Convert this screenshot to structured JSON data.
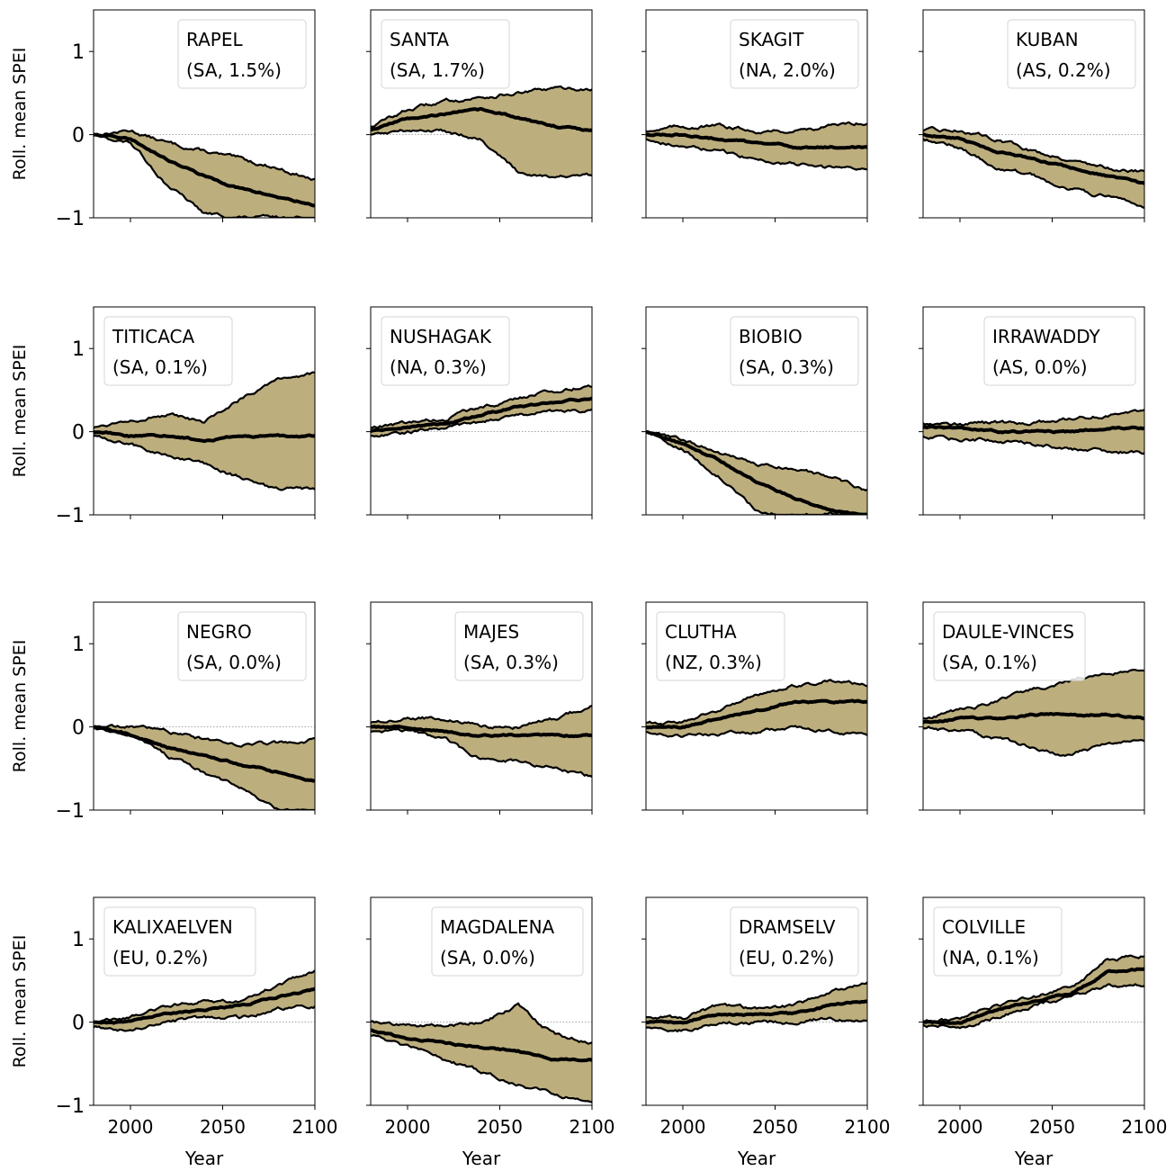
{
  "figure": {
    "ylabel": "Roll. mean SPEI",
    "xlabel": "Year",
    "xticks": [
      2000,
      2050,
      2100
    ],
    "yticks": [
      1,
      0,
      -1
    ],
    "xlim": [
      1980,
      2100
    ],
    "ylim": [
      -1,
      1.5
    ],
    "colors": {
      "shared": "#BDAE7E",
      "lower_only": "#FFE79A",
      "upper_only": "#9B9BD0",
      "line": "#000000"
    }
  },
  "chart_data": [
    {
      "type": "area",
      "title": "RAPEL",
      "subtitle": "(SA, 1.5%)",
      "legend": "right",
      "x": [
        1980,
        2000,
        2020,
        2040,
        2060,
        2080,
        2100
      ],
      "upper": [
        0.0,
        0.05,
        -0.1,
        -0.2,
        -0.3,
        -0.4,
        -0.55
      ],
      "median": [
        0.0,
        -0.05,
        -0.3,
        -0.5,
        -0.65,
        -0.75,
        -0.85
      ],
      "lower": [
        0.0,
        -0.1,
        -0.6,
        -0.95,
        -1.0,
        -1.0,
        -1.0
      ]
    },
    {
      "type": "area",
      "title": "SANTA",
      "subtitle": "(SA, 1.7%)",
      "legend": "left",
      "x": [
        1980,
        2000,
        2020,
        2040,
        2060,
        2080,
        2100
      ],
      "upper": [
        0.1,
        0.3,
        0.4,
        0.45,
        0.5,
        0.55,
        0.55
      ],
      "median": [
        0.05,
        0.2,
        0.25,
        0.3,
        0.2,
        0.1,
        0.05
      ],
      "lower": [
        0.0,
        0.05,
        0.05,
        -0.05,
        -0.45,
        -0.5,
        -0.5
      ]
    },
    {
      "type": "area",
      "title": "SKAGIT",
      "subtitle": "(NA, 2.0%)",
      "legend": "right",
      "x": [
        1980,
        2000,
        2020,
        2040,
        2060,
        2080,
        2100
      ],
      "upper": [
        0.05,
        0.1,
        0.1,
        0.05,
        0.05,
        0.1,
        0.15
      ],
      "median": [
        0.0,
        0.0,
        -0.05,
        -0.1,
        -0.15,
        -0.15,
        -0.15
      ],
      "lower": [
        -0.05,
        -0.15,
        -0.2,
        -0.3,
        -0.35,
        -0.4,
        -0.4
      ]
    },
    {
      "type": "area",
      "title": "KUBAN",
      "subtitle": "(AS, 0.2%)",
      "legend": "right",
      "x": [
        1980,
        2000,
        2020,
        2040,
        2060,
        2080,
        2100
      ],
      "upper": [
        0.05,
        0.05,
        -0.05,
        -0.2,
        -0.3,
        -0.4,
        -0.45
      ],
      "median": [
        0.0,
        -0.05,
        -0.2,
        -0.3,
        -0.4,
        -0.5,
        -0.6
      ],
      "lower": [
        -0.05,
        -0.15,
        -0.4,
        -0.5,
        -0.65,
        -0.75,
        -0.85
      ]
    },
    {
      "type": "area",
      "title": "TITICACA",
      "subtitle": "(SA, 0.1%)",
      "legend": "left",
      "x": [
        1980,
        2000,
        2020,
        2040,
        2060,
        2080,
        2100
      ],
      "upper": [
        0.05,
        0.15,
        0.2,
        0.1,
        0.4,
        0.65,
        0.7
      ],
      "median": [
        0.0,
        -0.05,
        -0.05,
        -0.1,
        -0.05,
        -0.05,
        -0.05
      ],
      "lower": [
        -0.05,
        -0.15,
        -0.3,
        -0.4,
        -0.55,
        -0.7,
        -0.7
      ]
    },
    {
      "type": "area",
      "title": "NUSHAGAK",
      "subtitle": "(NA, 0.3%)",
      "legend": "left",
      "x": [
        1980,
        2000,
        2020,
        2040,
        2060,
        2080,
        2100
      ],
      "upper": [
        0.05,
        0.1,
        0.15,
        0.3,
        0.4,
        0.5,
        0.55
      ],
      "median": [
        0.0,
        0.05,
        0.1,
        0.2,
        0.3,
        0.35,
        0.4
      ],
      "lower": [
        -0.05,
        0.0,
        0.05,
        0.1,
        0.2,
        0.25,
        0.25
      ]
    },
    {
      "type": "area",
      "title": "BIOBIO",
      "subtitle": "(SA, 0.3%)",
      "legend": "right",
      "x": [
        1980,
        2000,
        2020,
        2040,
        2060,
        2080,
        2100
      ],
      "upper": [
        0.0,
        -0.1,
        -0.25,
        -0.4,
        -0.45,
        -0.55,
        -0.7
      ],
      "median": [
        0.0,
        -0.15,
        -0.35,
        -0.6,
        -0.8,
        -0.95,
        -1.0
      ],
      "lower": [
        0.0,
        -0.2,
        -0.55,
        -0.95,
        -1.0,
        -1.0,
        -1.0
      ]
    },
    {
      "type": "area",
      "title": "IRRAWADDY",
      "subtitle": "(AS, 0.0%)",
      "legend": "right",
      "x": [
        1980,
        2000,
        2020,
        2040,
        2060,
        2080,
        2100
      ],
      "upper": [
        0.1,
        0.1,
        0.1,
        0.1,
        0.15,
        0.2,
        0.25
      ],
      "median": [
        0.05,
        0.05,
        0.0,
        0.0,
        0.0,
        0.05,
        0.05
      ],
      "lower": [
        -0.05,
        -0.1,
        -0.1,
        -0.15,
        -0.2,
        -0.25,
        -0.25
      ]
    },
    {
      "type": "area",
      "title": "NEGRO",
      "subtitle": "(SA, 0.0%)",
      "legend": "right",
      "x": [
        1980,
        2000,
        2020,
        2040,
        2060,
        2080,
        2100
      ],
      "upper": [
        0.0,
        0.0,
        -0.05,
        -0.15,
        -0.2,
        -0.2,
        -0.15
      ],
      "median": [
        0.0,
        -0.1,
        -0.25,
        -0.35,
        -0.45,
        -0.55,
        -0.65
      ],
      "lower": [
        0.0,
        -0.1,
        -0.35,
        -0.55,
        -0.75,
        -1.0,
        -1.0
      ]
    },
    {
      "type": "area",
      "title": "MAJES",
      "subtitle": "(SA, 0.3%)",
      "legend": "right",
      "x": [
        1980,
        2000,
        2020,
        2040,
        2060,
        2080,
        2100
      ],
      "upper": [
        0.05,
        0.1,
        0.1,
        0.0,
        0.0,
        0.1,
        0.25
      ],
      "median": [
        0.0,
        0.0,
        -0.05,
        -0.1,
        -0.1,
        -0.1,
        -0.1
      ],
      "lower": [
        -0.05,
        -0.05,
        -0.15,
        -0.4,
        -0.4,
        -0.5,
        -0.6
      ]
    },
    {
      "type": "area",
      "title": "CLUTHA",
      "subtitle": "(NZ, 0.3%)",
      "legend": "left",
      "x": [
        1980,
        2000,
        2020,
        2040,
        2060,
        2080,
        2100
      ],
      "upper": [
        0.05,
        0.05,
        0.2,
        0.4,
        0.5,
        0.55,
        0.5
      ],
      "median": [
        0.0,
        0.0,
        0.1,
        0.2,
        0.3,
        0.3,
        0.3
      ],
      "lower": [
        -0.05,
        -0.1,
        -0.1,
        -0.05,
        0.0,
        -0.05,
        -0.1
      ]
    },
    {
      "type": "area",
      "title": "DAULE-VINCES",
      "subtitle": "(SA, 0.1%)",
      "legend": "left",
      "x": [
        1980,
        2000,
        2020,
        2040,
        2060,
        2080,
        2100
      ],
      "upper": [
        0.1,
        0.2,
        0.3,
        0.45,
        0.55,
        0.65,
        0.7
      ],
      "median": [
        0.05,
        0.1,
        0.1,
        0.15,
        0.15,
        0.15,
        0.1
      ],
      "lower": [
        0.0,
        -0.05,
        -0.15,
        -0.25,
        -0.35,
        -0.2,
        -0.15
      ]
    },
    {
      "type": "area",
      "title": "KALIXAELVEN",
      "subtitle": "(EU, 0.2%)",
      "legend": "left",
      "x": [
        1980,
        2000,
        2020,
        2040,
        2060,
        2080,
        2100
      ],
      "upper": [
        0.0,
        0.05,
        0.2,
        0.25,
        0.25,
        0.45,
        0.6
      ],
      "median": [
        0.0,
        0.0,
        0.1,
        0.15,
        0.2,
        0.3,
        0.4
      ],
      "lower": [
        -0.05,
        -0.1,
        0.0,
        0.05,
        0.05,
        0.15,
        0.2
      ]
    },
    {
      "type": "area",
      "title": "MAGDALENA",
      "subtitle": "(SA, 0.0%)",
      "legend": "right",
      "x": [
        1980,
        2000,
        2020,
        2040,
        2060,
        2080,
        2100
      ],
      "upper": [
        0.0,
        -0.05,
        -0.05,
        0.0,
        0.2,
        -0.15,
        -0.25
      ],
      "median": [
        -0.1,
        -0.2,
        -0.25,
        -0.3,
        -0.35,
        -0.45,
        -0.45
      ],
      "lower": [
        -0.15,
        -0.3,
        -0.45,
        -0.6,
        -0.75,
        -0.85,
        -1.0
      ]
    },
    {
      "type": "area",
      "title": "DRAMSELV",
      "subtitle": "(EU, 0.2%)",
      "legend": "right",
      "x": [
        1980,
        2000,
        2020,
        2040,
        2060,
        2080,
        2100
      ],
      "upper": [
        0.05,
        0.05,
        0.2,
        0.15,
        0.2,
        0.35,
        0.5
      ],
      "median": [
        0.0,
        0.0,
        0.1,
        0.1,
        0.1,
        0.2,
        0.25
      ],
      "lower": [
        -0.05,
        -0.1,
        0.0,
        0.0,
        0.0,
        0.05,
        0.0
      ]
    },
    {
      "type": "area",
      "title": "COLVILLE",
      "subtitle": "(NA, 0.1%)",
      "legend": "left",
      "x": [
        1980,
        2000,
        2020,
        2040,
        2060,
        2080,
        2100
      ],
      "upper": [
        0.0,
        0.05,
        0.2,
        0.3,
        0.4,
        0.75,
        0.8
      ],
      "median": [
        0.0,
        0.0,
        0.15,
        0.25,
        0.35,
        0.6,
        0.65
      ],
      "lower": [
        -0.05,
        -0.05,
        0.05,
        0.2,
        0.3,
        0.45,
        0.45
      ]
    }
  ]
}
